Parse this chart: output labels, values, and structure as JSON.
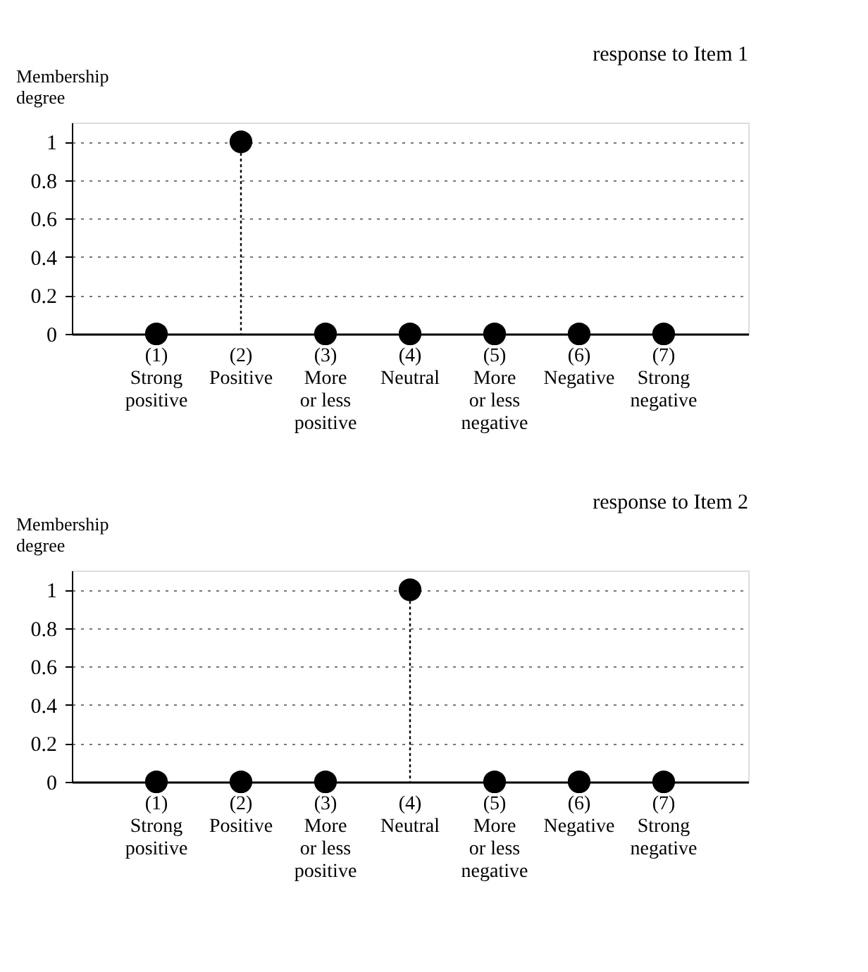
{
  "chart_data": [
    {
      "type": "lollipop",
      "title": "response to Item 1",
      "ylabel": "Membership degree",
      "categories": [
        "(1)\nStrong\npositive",
        "(2)\nPositive",
        "(3)\nMore\nor less\npositive",
        "(4)\nNeutral",
        "(5)\nMore\nor less\nnegative",
        "(6)\nNegative",
        "(7)\nStrong\nnegative"
      ],
      "series": [
        {
          "color": "#000000",
          "values": [
            0,
            1,
            0,
            0,
            0,
            0,
            0
          ]
        }
      ],
      "ylim": [
        0,
        1.1
      ],
      "yticks": [
        0,
        0.2,
        0.4,
        0.6,
        0.8,
        1
      ],
      "grid": "y",
      "marker": "circle",
      "line_style": "dotted"
    },
    {
      "type": "lollipop",
      "title": "response to Item 2",
      "ylabel": "Membership degree",
      "categories": [
        "(1)\nStrong\npositive",
        "(2)\nPositive",
        "(3)\nMore\nor less\npositive",
        "(4)\nNeutral",
        "(5)\nMore\nor less\nnegative",
        "(6)\nNegative",
        "(7)\nStrong\nnegative"
      ],
      "series": [
        {
          "color": "#000000",
          "values": [
            0,
            0,
            0,
            1,
            0,
            0,
            0
          ]
        }
      ],
      "ylim": [
        0,
        1.1
      ],
      "yticks": [
        0,
        0.2,
        0.4,
        0.6,
        0.8,
        1
      ],
      "grid": "y",
      "marker": "circle",
      "line_style": "dotted"
    }
  ]
}
